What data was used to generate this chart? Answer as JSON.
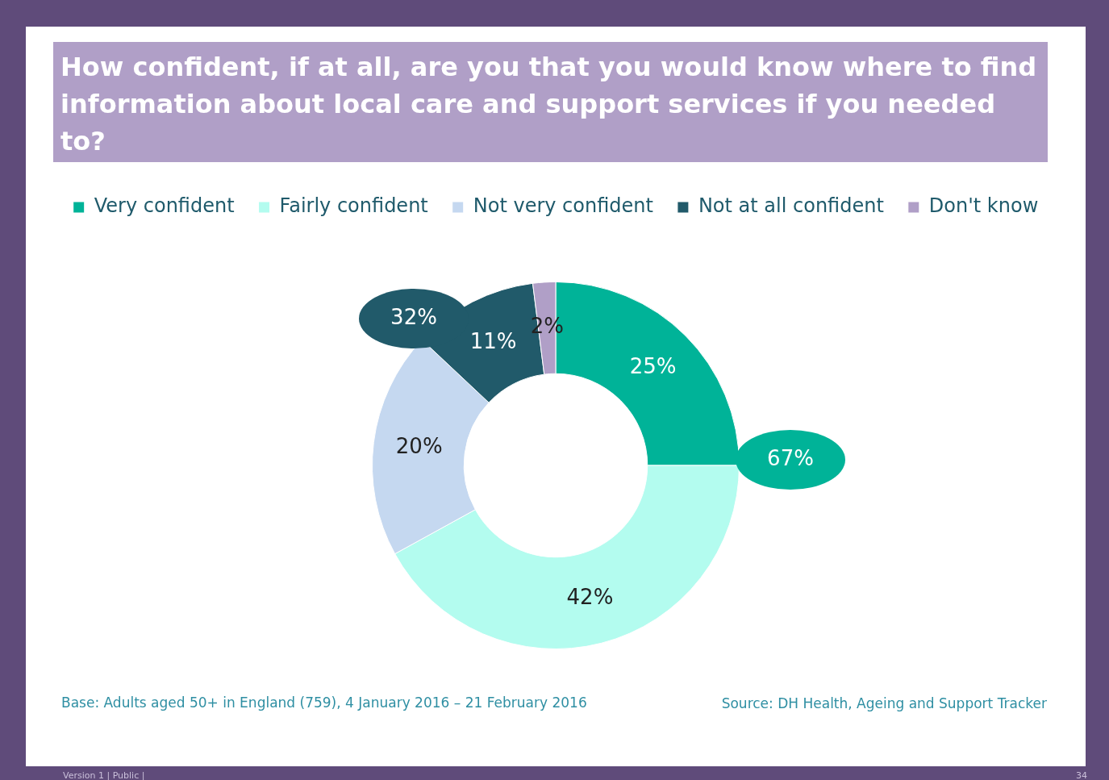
{
  "chart_data": {
    "type": "donut",
    "title": "How confident, if at all, are you that you would know where to find information about local care and support services if you needed to?",
    "categories": [
      "Very confident",
      "Fairly confident",
      "Not very confident",
      "Not at all confident",
      "Don't know"
    ],
    "values": [
      25,
      42,
      20,
      11,
      2
    ],
    "colors": [
      "#00b398",
      "#b3fcef",
      "#c5d8f0",
      "#215a6a",
      "#b09fc7"
    ],
    "value_labels": [
      "25%",
      "42%",
      "20%",
      "11%",
      "2%"
    ],
    "legend": "top",
    "annotations": [
      "67%",
      "32%",
      "Base: Adults aged 50+ in England (759), 4 January 2016 – 21 February 2016",
      "Source: DH Health, Ageing and Support Tracker",
      "Version 1  |  Public  |",
      "34"
    ]
  }
}
